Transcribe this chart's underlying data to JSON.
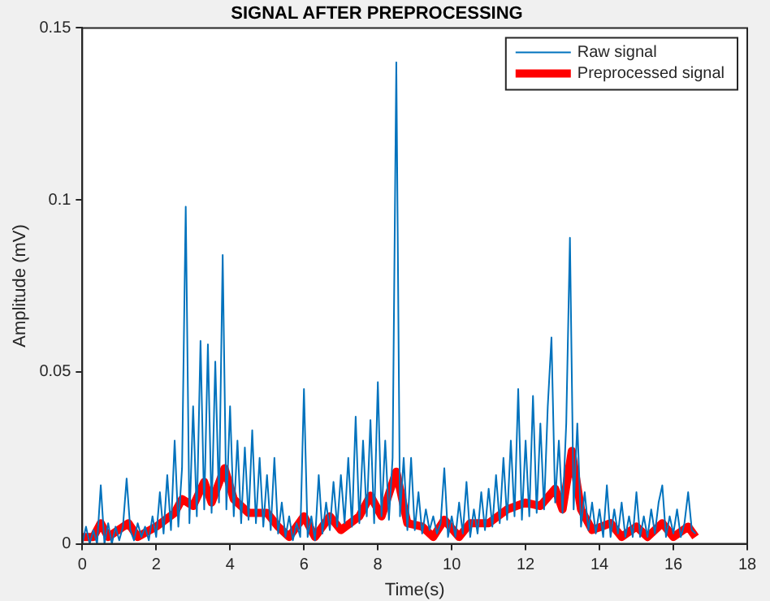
{
  "chart_data": {
    "type": "line",
    "title": "SIGNAL AFTER PREPROCESSING",
    "xlabel": "Time(s)",
    "ylabel": "Amplitude (mV)",
    "xlim": [
      0,
      18
    ],
    "xticks": [
      0,
      2,
      4,
      6,
      8,
      10,
      12,
      14,
      16,
      18
    ],
    "ylim": [
      0,
      0.15
    ],
    "yticks": [
      0,
      0.05,
      0.1,
      0.15
    ],
    "grid": false,
    "legend": "top right",
    "marker": "none",
    "line_style": "solid",
    "series": [
      {
        "name": "Raw signal",
        "color": "#0072bd",
        "x": [
          0,
          0.1,
          0.2,
          0.3,
          0.4,
          0.5,
          0.6,
          0.7,
          0.8,
          0.9,
          1,
          1.1,
          1.2,
          1.3,
          1.4,
          1.5,
          1.6,
          1.7,
          1.8,
          1.9,
          2,
          2.1,
          2.2,
          2.3,
          2.4,
          2.5,
          2.6,
          2.7,
          2.8,
          2.9,
          3,
          3.1,
          3.2,
          3.3,
          3.4,
          3.5,
          3.6,
          3.7,
          3.8,
          3.9,
          4,
          4.1,
          4.2,
          4.3,
          4.4,
          4.5,
          4.6,
          4.7,
          4.8,
          4.9,
          5,
          5.1,
          5.2,
          5.3,
          5.4,
          5.5,
          5.6,
          5.7,
          5.8,
          5.9,
          6,
          6.1,
          6.2,
          6.3,
          6.4,
          6.5,
          6.6,
          6.7,
          6.8,
          6.9,
          7,
          7.1,
          7.2,
          7.3,
          7.4,
          7.5,
          7.6,
          7.7,
          7.8,
          7.9,
          8,
          8.1,
          8.2,
          8.3,
          8.4,
          8.5,
          8.6,
          8.7,
          8.8,
          8.9,
          9,
          9.1,
          9.2,
          9.3,
          9.4,
          9.5,
          9.6,
          9.7,
          9.8,
          9.9,
          10,
          10.1,
          10.2,
          10.3,
          10.4,
          10.5,
          10.6,
          10.7,
          10.8,
          10.9,
          11,
          11.1,
          11.2,
          11.3,
          11.4,
          11.5,
          11.6,
          11.7,
          11.8,
          11.9,
          12,
          12.1,
          12.2,
          12.3,
          12.4,
          12.5,
          12.6,
          12.7,
          12.8,
          12.9,
          13,
          13.1,
          13.2,
          13.3,
          13.4,
          13.5,
          13.6,
          13.7,
          13.8,
          13.9,
          14,
          14.1,
          14.2,
          14.3,
          14.4,
          14.5,
          14.6,
          14.7,
          14.8,
          14.9,
          15,
          15.1,
          15.2,
          15.3,
          15.4,
          15.5,
          15.6,
          15.7,
          15.8,
          15.9,
          16,
          16.1,
          16.2,
          16.3,
          16.4,
          16.5,
          16.6
        ],
        "values": [
          0,
          0.005,
          0,
          0.004,
          0,
          0.017,
          0,
          0.006,
          0,
          0.005,
          0.001,
          0.005,
          0.019,
          0.004,
          0.001,
          0.006,
          0.002,
          0.005,
          0.001,
          0.008,
          0.002,
          0.015,
          0.003,
          0.02,
          0.004,
          0.03,
          0.005,
          0.022,
          0.098,
          0.006,
          0.04,
          0.008,
          0.059,
          0.01,
          0.058,
          0.009,
          0.053,
          0.012,
          0.084,
          0.01,
          0.04,
          0.008,
          0.03,
          0.006,
          0.028,
          0.007,
          0.033,
          0.006,
          0.025,
          0.005,
          0.02,
          0.004,
          0.025,
          0.003,
          0.012,
          0.002,
          0.008,
          0.001,
          0.006,
          0.002,
          0.045,
          0.002,
          0.008,
          0.001,
          0.02,
          0.003,
          0.012,
          0.004,
          0.018,
          0.005,
          0.02,
          0.006,
          0.025,
          0.005,
          0.037,
          0.006,
          0.03,
          0.008,
          0.036,
          0.006,
          0.047,
          0.008,
          0.03,
          0.007,
          0.025,
          0.14,
          0.008,
          0.025,
          0.004,
          0.025,
          0.004,
          0.015,
          0.003,
          0.01,
          0.004,
          0.008,
          0.003,
          0.006,
          0.022,
          0.002,
          0.008,
          0.002,
          0.012,
          0.003,
          0.018,
          0.002,
          0.01,
          0.003,
          0.015,
          0.004,
          0.016,
          0.005,
          0.02,
          0.006,
          0.025,
          0.007,
          0.03,
          0.008,
          0.045,
          0.007,
          0.03,
          0.008,
          0.043,
          0.009,
          0.035,
          0.01,
          0.04,
          0.06,
          0.012,
          0.03,
          0.009,
          0.035,
          0.089,
          0.01,
          0.035,
          0.005,
          0.015,
          0.004,
          0.012,
          0.003,
          0.01,
          0.002,
          0.017,
          0.002,
          0.01,
          0.003,
          0.012,
          0.002,
          0.008,
          0.002,
          0.015,
          0.002,
          0.008,
          0.002,
          0.01,
          0.003,
          0.012,
          0.017,
          0.002,
          0.008,
          0.003,
          0.01,
          0.002,
          0.006,
          0.015,
          0.004,
          0.003
        ]
      },
      {
        "name": "Preprocessed signal",
        "color": "#ff0000",
        "x": [
          0,
          0.3,
          0.5,
          0.7,
          1.25,
          1.5,
          2,
          2.5,
          2.7,
          3,
          3.3,
          3.5,
          3.85,
          4.1,
          4.5,
          5,
          5.3,
          5.6,
          6,
          6.3,
          6.7,
          7,
          7.5,
          7.8,
          8.1,
          8.5,
          8.8,
          9.2,
          9.5,
          9.8,
          10.2,
          10.5,
          11,
          11.5,
          12,
          12.4,
          12.8,
          13,
          13.25,
          13.5,
          13.8,
          14.3,
          14.6,
          15,
          15.3,
          15.7,
          16,
          16.4,
          16.6
        ],
        "values": [
          0.002,
          0.002,
          0.006,
          0.002,
          0.006,
          0.002,
          0.005,
          0.009,
          0.013,
          0.011,
          0.018,
          0.012,
          0.022,
          0.013,
          0.009,
          0.009,
          0.005,
          0.002,
          0.008,
          0.002,
          0.008,
          0.004,
          0.008,
          0.014,
          0.008,
          0.021,
          0.006,
          0.005,
          0.002,
          0.007,
          0.002,
          0.006,
          0.006,
          0.01,
          0.012,
          0.011,
          0.016,
          0.01,
          0.027,
          0.01,
          0.004,
          0.006,
          0.002,
          0.005,
          0.002,
          0.006,
          0.002,
          0.005,
          0.002
        ]
      }
    ]
  }
}
